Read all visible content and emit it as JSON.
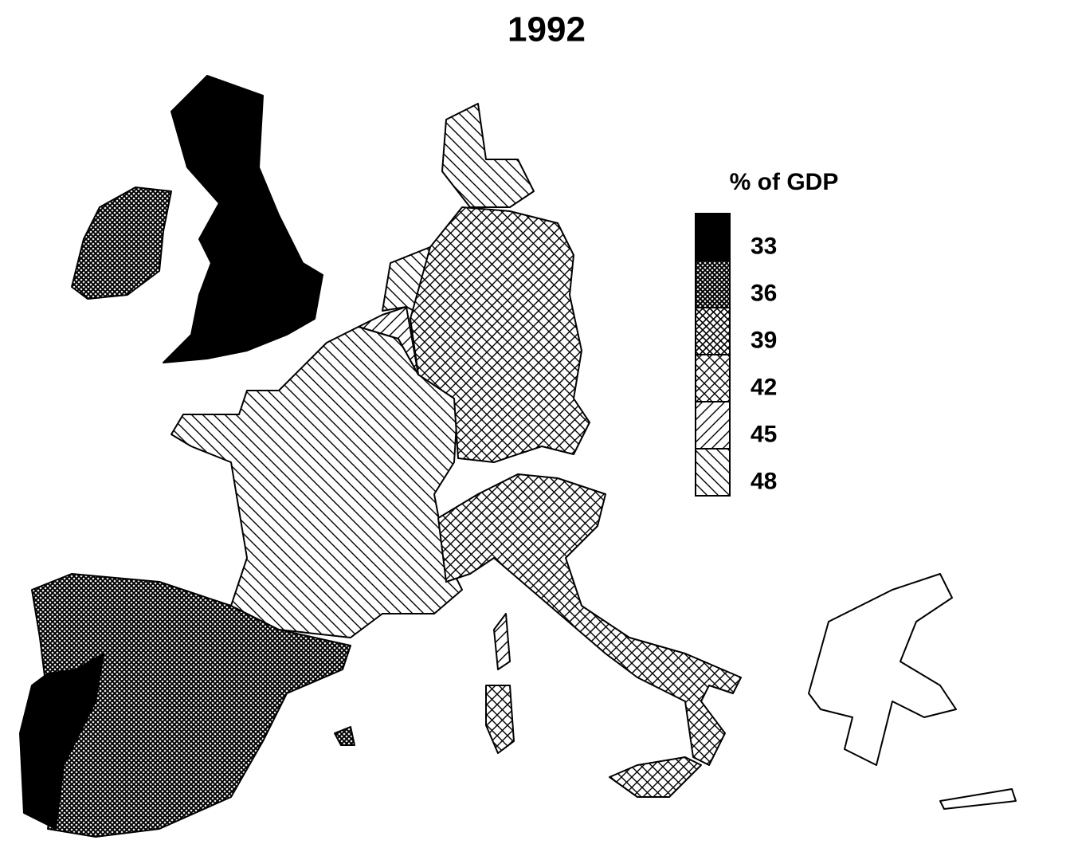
{
  "title": "1992",
  "legend": {
    "title": "% of GDP",
    "items": [
      33,
      36,
      39,
      42,
      45,
      48
    ]
  }
}
